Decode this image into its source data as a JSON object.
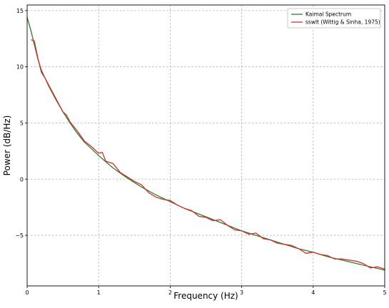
{
  "chart_data": {
    "type": "line",
    "title": "",
    "xlabel": "Frequency (Hz)",
    "ylabel": "Power (dB/Hz)",
    "xlim": [
      0,
      5
    ],
    "ylim": [
      -9.5,
      15.5
    ],
    "xticks": [
      0,
      1,
      2,
      3,
      4,
      5
    ],
    "xtick_labels": [
      "0",
      "1",
      "2",
      "3",
      "4",
      "5"
    ],
    "yticks": [
      -5,
      0,
      5,
      10,
      15
    ],
    "ytick_labels": [
      "−5",
      "0",
      "5",
      "10",
      "15"
    ],
    "grid": true,
    "legend_position": "top-right",
    "series": [
      {
        "name": "Kaimal Spectrum",
        "color": "#2e7d32",
        "x": [
          0,
          0.05,
          0.1,
          0.15,
          0.2,
          0.3,
          0.4,
          0.5,
          0.6,
          0.7,
          0.8,
          0.9,
          1.0,
          1.2,
          1.4,
          1.6,
          1.8,
          2.0,
          2.2,
          2.4,
          2.6,
          2.8,
          3.0,
          3.2,
          3.4,
          3.6,
          3.8,
          4.0,
          4.2,
          4.4,
          4.6,
          4.8,
          5.0
        ],
        "y": [
          14.4,
          13.3,
          12.0,
          10.7,
          9.7,
          8.3,
          7.1,
          6.0,
          5.0,
          4.1,
          3.3,
          2.7,
          2.1,
          1.0,
          0.1,
          -0.7,
          -1.4,
          -2.0,
          -2.6,
          -3.1,
          -3.6,
          -4.1,
          -4.6,
          -5.0,
          -5.4,
          -5.8,
          -6.2,
          -6.5,
          -6.9,
          -7.2,
          -7.5,
          -7.8,
          -8.1
        ]
      },
      {
        "name": "sswlt (Wittig & Sinha, 1975)",
        "color": "#d32f2f",
        "x": [
          0.06,
          0.1,
          0.15,
          0.2,
          0.25,
          0.3,
          0.4,
          0.5,
          0.55,
          0.6,
          0.7,
          0.8,
          0.9,
          1.0,
          1.05,
          1.1,
          1.2,
          1.3,
          1.4,
          1.5,
          1.6,
          1.7,
          1.8,
          1.9,
          2.0,
          2.1,
          2.2,
          2.3,
          2.4,
          2.5,
          2.6,
          2.7,
          2.8,
          2.9,
          3.0,
          3.1,
          3.2,
          3.3,
          3.4,
          3.5,
          3.6,
          3.7,
          3.8,
          3.9,
          4.0,
          4.1,
          4.2,
          4.3,
          4.4,
          4.5,
          4.6,
          4.7,
          4.8,
          4.9,
          5.0
        ],
        "y": [
          12.4,
          12.3,
          10.8,
          9.5,
          9.0,
          8.4,
          7.2,
          6.0,
          5.7,
          5.1,
          4.3,
          3.4,
          2.9,
          2.3,
          2.4,
          1.6,
          1.4,
          0.6,
          0.2,
          -0.2,
          -0.5,
          -1.2,
          -1.6,
          -1.8,
          -1.9,
          -2.3,
          -2.6,
          -2.8,
          -3.3,
          -3.4,
          -3.7,
          -3.6,
          -4.1,
          -4.5,
          -4.6,
          -4.9,
          -4.8,
          -5.3,
          -5.4,
          -5.7,
          -5.8,
          -5.9,
          -6.2,
          -6.6,
          -6.5,
          -6.7,
          -6.8,
          -7.1,
          -7.1,
          -7.2,
          -7.3,
          -7.5,
          -7.9,
          -7.8,
          -8.0
        ]
      }
    ]
  }
}
